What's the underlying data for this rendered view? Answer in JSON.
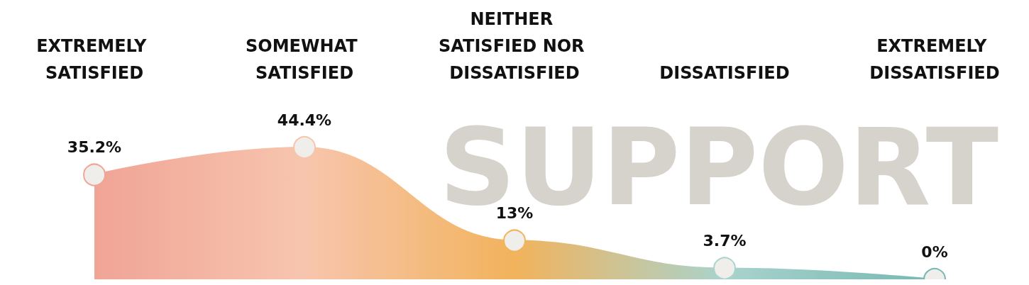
{
  "chart_data": {
    "type": "area",
    "title": "SUPPORT",
    "categories": [
      "EXTREMELY SATISFIED",
      "SOMEWHAT SATISFIED",
      "NEITHER SATISFIED NOR DISSATISFIED",
      "DISSATISFIED",
      "EXTREMELY DISSATISFIED"
    ],
    "series": [
      {
        "colors": [
          "#f0a496",
          "#f7c5ad",
          "#f2b35c",
          "#a9d3cc",
          "#76b8b2"
        ],
        "values": [
          35.2,
          44.4,
          13,
          3.7,
          0
        ]
      },
      {
        "type": "scatter",
        "marker": "circle",
        "color": "#efeeeb",
        "values": [
          35.2,
          44.4,
          13,
          3.7,
          0
        ],
        "value_labels": [
          "35.2%",
          "44.4%",
          "13%",
          "3.7%",
          "0%"
        ]
      }
    ],
    "grid": false
  }
}
